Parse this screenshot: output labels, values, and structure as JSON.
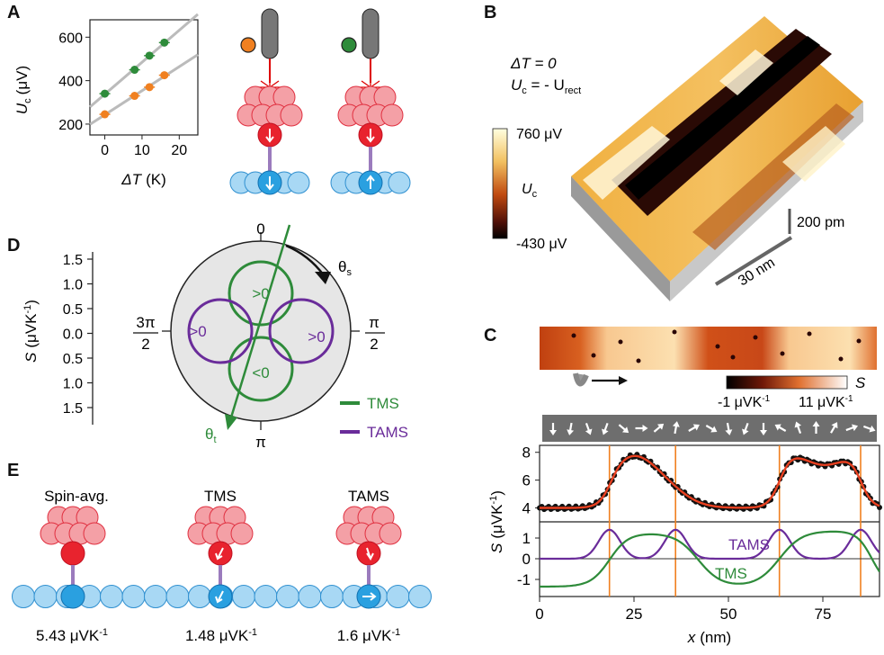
{
  "panels": {
    "A": {
      "letter": "A",
      "chart_data": {
        "type": "scatter",
        "ylabel_main": "U",
        "ylabel_sub": "c",
        "ylabel_unit": "(μV)",
        "xlabel_main": "ΔT",
        "xlabel_unit": "(K)",
        "xticks": [
          "0",
          "10",
          "20"
        ],
        "yticks": [
          "200",
          "400",
          "600"
        ],
        "xlim": [
          -4,
          25
        ],
        "ylim": [
          150,
          680
        ],
        "series": [
          {
            "color": "#2e8b3a",
            "x": [
              0,
              8,
              12,
              16
            ],
            "y": [
              340,
              450,
              515,
              575
            ]
          },
          {
            "color": "#f08020",
            "x": [
              0,
              8,
              12,
              16
            ],
            "y": [
              245,
              330,
              370,
              425
            ]
          }
        ]
      }
    },
    "B": {
      "letter": "B",
      "condition_1": "ΔT = 0",
      "condition_2_main": "U",
      "condition_2_sub": "c",
      "condition_2_rest": " = - U",
      "condition_2_sub2": "rect",
      "colorbar_max": "760 μV",
      "colorbar_min": "-430 μV",
      "colorbar_label_main": "U",
      "colorbar_label_sub": "c",
      "scale_height": "200 pm",
      "scale_length": "30 nm"
    },
    "C": {
      "letter": "C",
      "colorbar_min": "-1 μVK",
      "colorbar_max": "11 μVK",
      "colorbar_label": "S",
      "superscript": "-1",
      "chart_data": {
        "type": "line",
        "xlabel_main": "x",
        "xlabel_unit": "(nm)",
        "ylabel_main": "S",
        "ylabel_unit": "(μVK",
        "ylabel_sup": "-1",
        "xticks": [
          "0",
          "25",
          "50",
          "75"
        ],
        "yticks_upper": [
          "4",
          "6",
          "8"
        ],
        "yticks_lower": [
          "-1",
          "0",
          "1"
        ],
        "xlim": [
          0,
          90
        ],
        "vertical_lines_x": [
          18.5,
          36,
          63.5,
          85
        ],
        "series": [
          {
            "name": "TAMS",
            "color": "#6a2c9a"
          },
          {
            "name": "TMS",
            "color": "#2e8b3a"
          }
        ]
      }
    },
    "D": {
      "letter": "D",
      "ylabel_main": "S",
      "ylabel_unit": "(μVK",
      "ylabel_sup": "-1",
      "yticks": [
        "1.5",
        "1.0",
        "0.5",
        "0.0",
        "0.5",
        "1.0",
        "1.5"
      ],
      "angle_top": "0",
      "angle_bottom": "π",
      "angle_right_num": "π",
      "angle_right_den": "2",
      "angle_left_num": "3π",
      "angle_left_den": "2",
      "theta_s": "θ",
      "theta_s_sub": "s",
      "theta_t": "θ",
      "theta_t_sub": "t",
      "lobe_top": ">0",
      "lobe_bottom": "<0",
      "lobe_left": ">0",
      "lobe_right": ">0",
      "legend": [
        {
          "label": "TMS",
          "color": "#2e8b3a"
        },
        {
          "label": "TAMS",
          "color": "#6a2c9a"
        }
      ]
    },
    "E": {
      "letter": "E",
      "labels": [
        "Spin-avg.",
        "TMS",
        "TAMS"
      ],
      "values": [
        "5.43 μVK",
        "1.48 μVK",
        "1.6 μVK"
      ],
      "superscript": "-1"
    }
  }
}
